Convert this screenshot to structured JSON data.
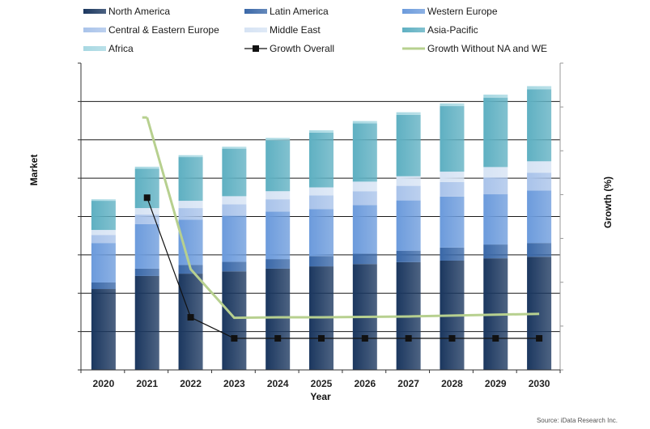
{
  "chart_data": {
    "type": "bar",
    "stacked": true,
    "title": "",
    "xlabel": "Year",
    "ylabel": "Market",
    "y2label": "Growth (%)",
    "y_axis_labels_shown": false,
    "y2_axis_labels_shown": false,
    "ylim": [
      0,
      8
    ],
    "y2lim": [
      0,
      7
    ],
    "grid": true,
    "legend_position": "top",
    "categories": [
      "2020",
      "2021",
      "2022",
      "2023",
      "2024",
      "2025",
      "2026",
      "2027",
      "2028",
      "2029",
      "2030"
    ],
    "series": [
      {
        "name": "North America",
        "kind": "bar",
        "color": "#1b375f",
        "values": [
          2.11,
          2.45,
          2.51,
          2.57,
          2.64,
          2.7,
          2.76,
          2.81,
          2.85,
          2.91,
          2.95
        ]
      },
      {
        "name": "Latin America",
        "kind": "bar",
        "color": "#3a68a8",
        "values": [
          0.17,
          0.19,
          0.23,
          0.25,
          0.25,
          0.27,
          0.27,
          0.3,
          0.34,
          0.36,
          0.36
        ]
      },
      {
        "name": "Western Europe",
        "kind": "bar",
        "color": "#6c9bdc",
        "values": [
          1.03,
          1.16,
          1.18,
          1.2,
          1.24,
          1.22,
          1.27,
          1.31,
          1.33,
          1.31,
          1.37
        ]
      },
      {
        "name": "Central & Eastern Europe",
        "kind": "bar",
        "color": "#a9c3ea",
        "values": [
          0.21,
          0.25,
          0.3,
          0.3,
          0.32,
          0.36,
          0.36,
          0.38,
          0.38,
          0.44,
          0.46
        ]
      },
      {
        "name": "Middle East",
        "kind": "bar",
        "color": "#d6e3f4",
        "values": [
          0.13,
          0.17,
          0.19,
          0.21,
          0.21,
          0.21,
          0.25,
          0.25,
          0.27,
          0.27,
          0.3
        ]
      },
      {
        "name": "Asia-Pacific",
        "kind": "bar",
        "color": "#5fb0c2",
        "values": [
          0.76,
          1.03,
          1.14,
          1.24,
          1.33,
          1.43,
          1.52,
          1.6,
          1.71,
          1.81,
          1.88
        ]
      },
      {
        "name": "Africa",
        "kind": "bar",
        "color": "#a7d8e2",
        "values": [
          0.04,
          0.05,
          0.05,
          0.05,
          0.06,
          0.06,
          0.06,
          0.07,
          0.07,
          0.08,
          0.08
        ]
      },
      {
        "name": "Growth Overall",
        "kind": "line",
        "axis": "right",
        "color": "#111111",
        "marker": "square",
        "values": [
          null,
          3.93,
          1.2,
          0.72,
          0.72,
          0.72,
          0.72,
          0.72,
          0.72,
          0.72,
          0.72
        ]
      },
      {
        "name": "Growth Without NA and WE",
        "kind": "line",
        "axis": "right",
        "color": "#b7d08f",
        "marker": "none",
        "values": [
          null,
          5.76,
          2.3,
          1.19,
          1.2,
          1.2,
          1.21,
          1.22,
          1.24,
          1.26,
          1.28
        ]
      }
    ],
    "legend": [
      "North America",
      "Latin America",
      "Western Europe",
      "Central & Eastern Europe",
      "Middle East",
      "Asia-Pacific",
      "Africa",
      "Growth Overall",
      "Growth Without NA and WE"
    ],
    "source": "Source: iData Research Inc."
  }
}
